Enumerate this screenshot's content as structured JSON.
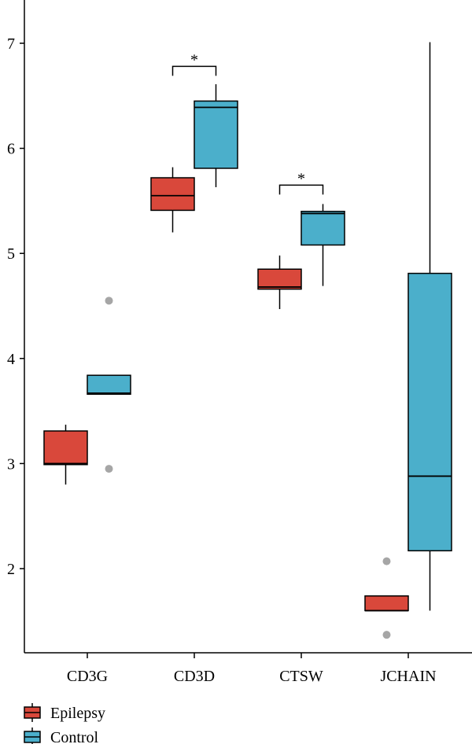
{
  "chart_data": {
    "type": "box",
    "title": "",
    "xlabel": "",
    "ylabel": "",
    "ylim": [
      1.25,
      7.4
    ],
    "y_ticks": [
      2,
      3,
      4,
      5,
      6,
      7
    ],
    "y_tick_labels": [
      "2",
      "3",
      "4",
      "5",
      "6",
      "7"
    ],
    "categories": [
      "CD3G",
      "CD3D",
      "CTSW",
      "JCHAIN"
    ],
    "grid": false,
    "legend_position": "bottom-left",
    "series": [
      {
        "name": "Epilepsy",
        "color": "#D9483B",
        "boxes": [
          {
            "category": "CD3G",
            "whisker_low": 2.8,
            "q1": 2.99,
            "median": 3.0,
            "q3": 3.31,
            "whisker_high": 3.37,
            "outliers": []
          },
          {
            "category": "CD3D",
            "whisker_low": 5.2,
            "q1": 5.41,
            "median": 5.55,
            "q3": 5.72,
            "whisker_high": 5.82,
            "outliers": []
          },
          {
            "category": "CTSW",
            "whisker_low": 4.47,
            "q1": 4.66,
            "median": 4.68,
            "q3": 4.85,
            "whisker_high": 4.98,
            "outliers": []
          },
          {
            "category": "JCHAIN",
            "whisker_low": 1.6,
            "q1": 1.6,
            "median": 1.6,
            "q3": 1.74,
            "whisker_high": 1.74,
            "outliers": [
              2.07,
              1.37
            ]
          }
        ]
      },
      {
        "name": "Control",
        "color": "#4BAFCB",
        "boxes": [
          {
            "category": "CD3G",
            "whisker_low": 3.66,
            "q1": 3.66,
            "median": 3.67,
            "q3": 3.84,
            "whisker_high": 3.84,
            "outliers": [
              4.55,
              2.95
            ]
          },
          {
            "category": "CD3D",
            "whisker_low": 5.63,
            "q1": 5.81,
            "median": 6.39,
            "q3": 6.45,
            "whisker_high": 6.61,
            "outliers": []
          },
          {
            "category": "CTSW",
            "whisker_low": 4.69,
            "q1": 5.08,
            "median": 5.38,
            "q3": 5.4,
            "whisker_high": 5.47,
            "outliers": []
          },
          {
            "category": "JCHAIN",
            "whisker_low": 1.6,
            "q1": 2.17,
            "median": 2.88,
            "q3": 4.81,
            "whisker_high": 7.01,
            "outliers": []
          }
        ]
      }
    ],
    "annotations": [
      {
        "category": "CD3D",
        "text": "*",
        "bracket_y": 6.78
      },
      {
        "category": "CTSW",
        "text": "*",
        "bracket_y": 5.65
      }
    ],
    "outlier_color": "#A6A6A6"
  }
}
